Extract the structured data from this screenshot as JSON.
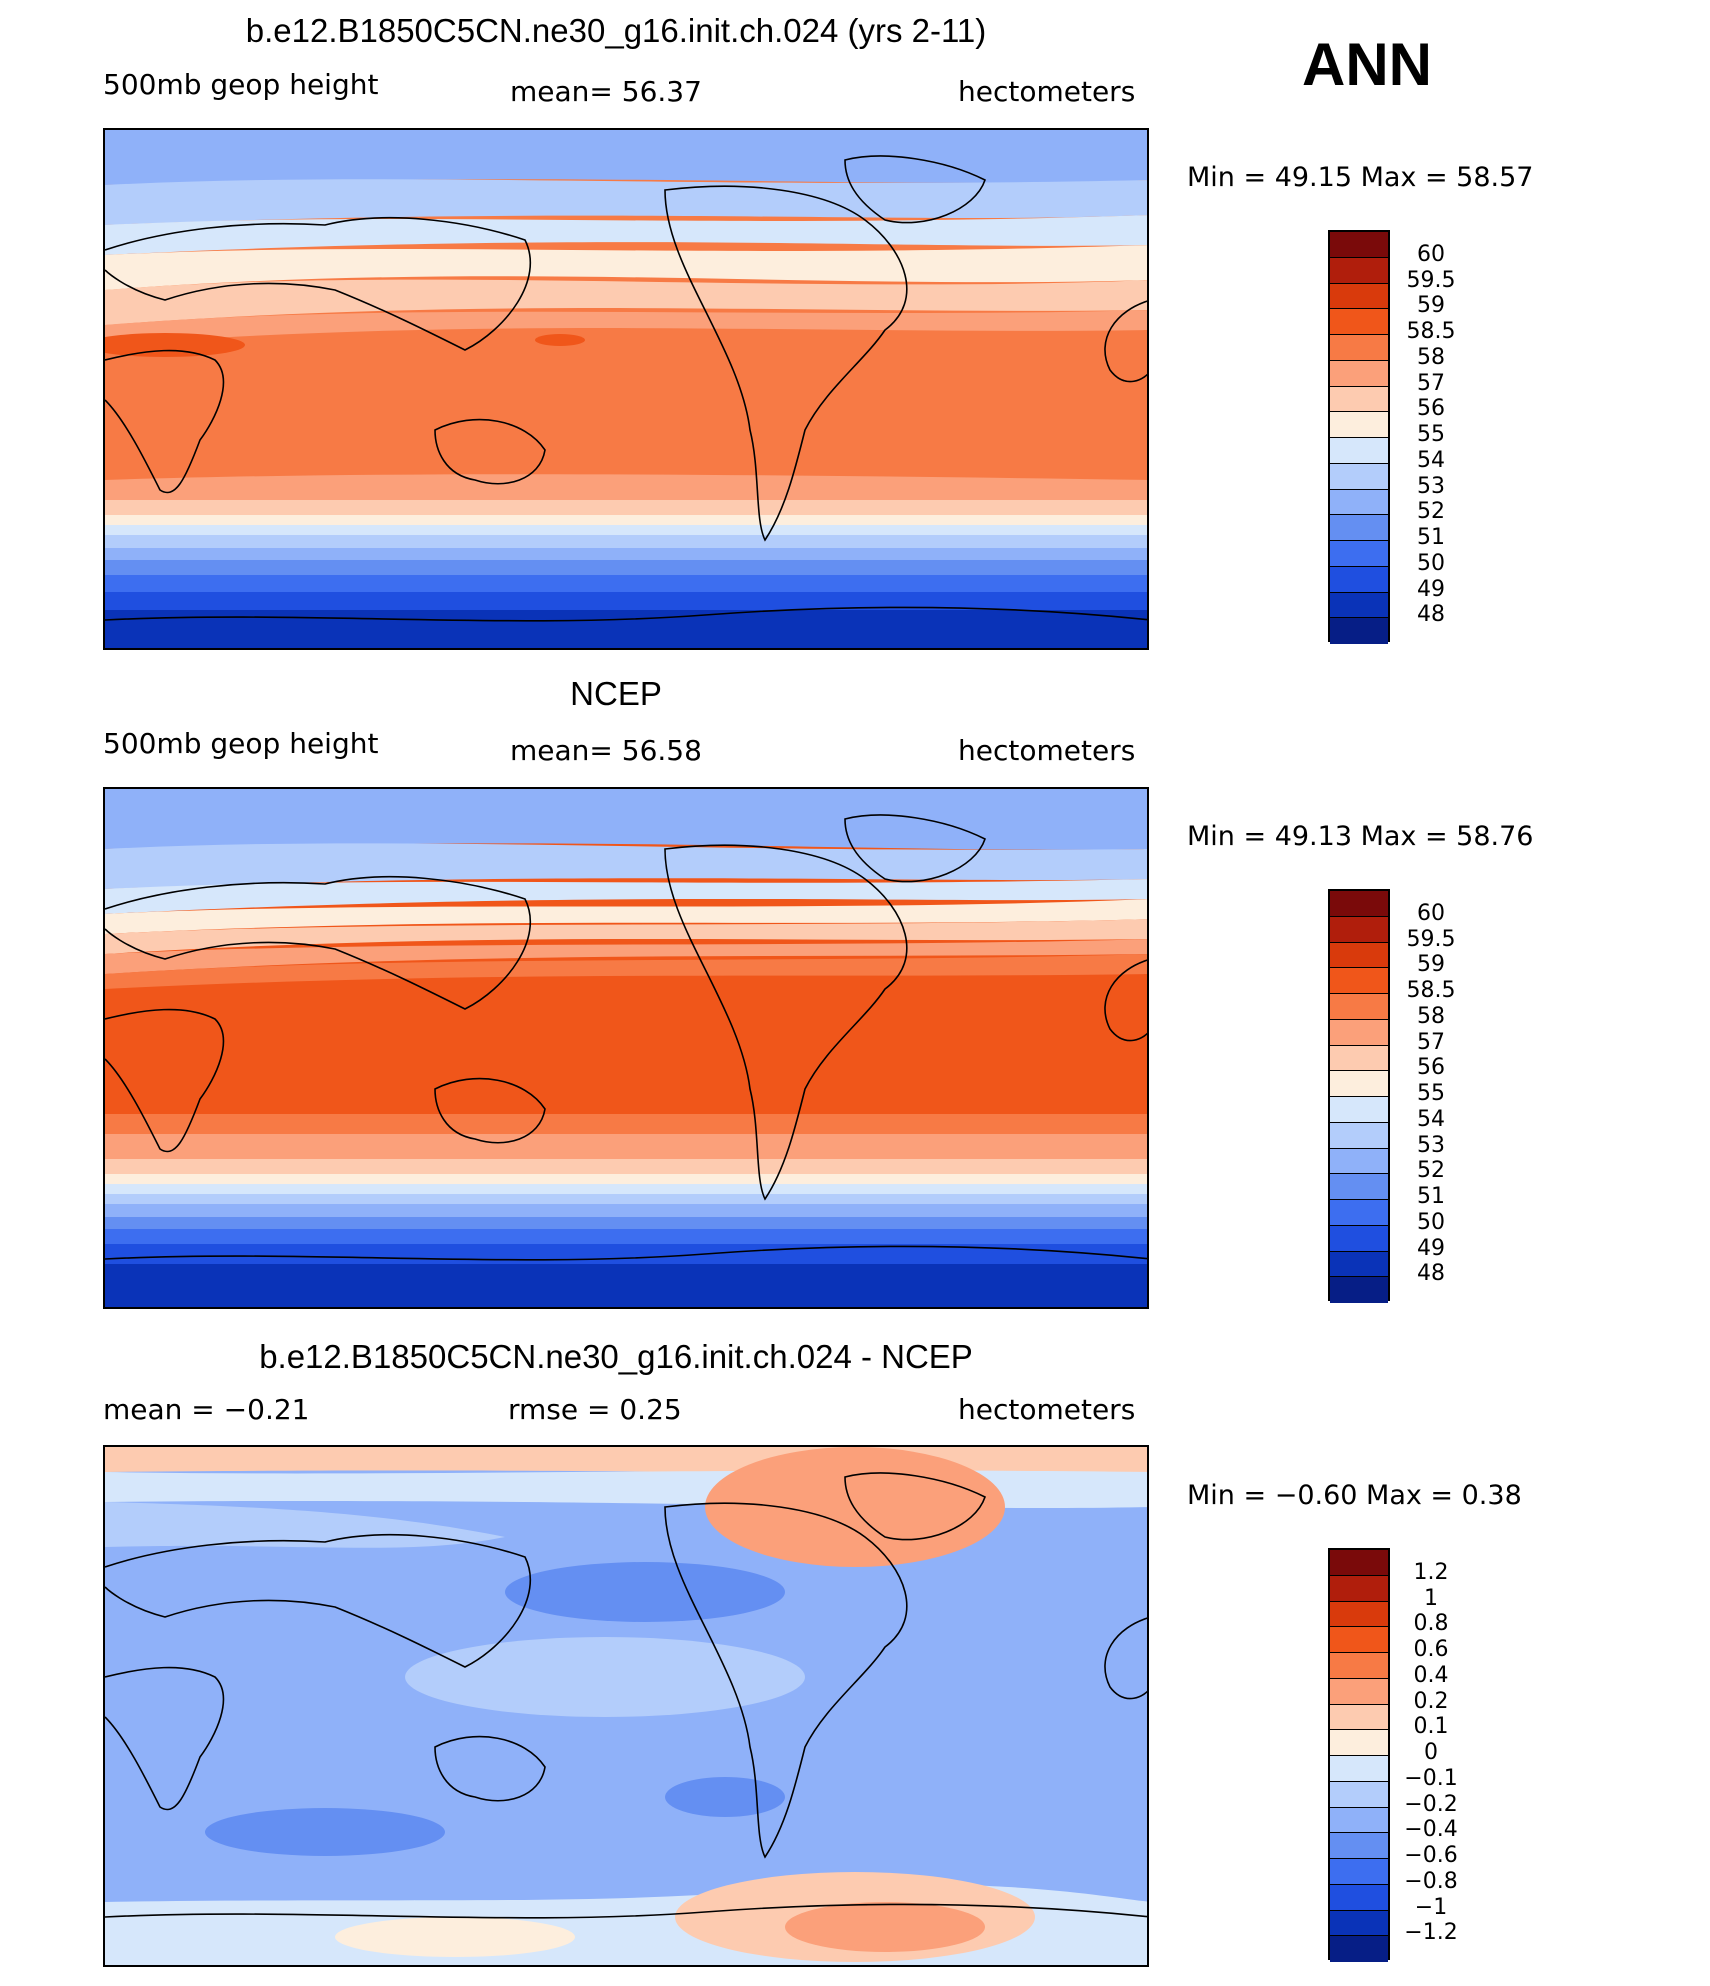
{
  "season": "ANN",
  "panels": [
    {
      "title": "b.e12.B1850C5CN.ne30_g16.init.ch.024 (yrs 2-11)",
      "left_label": "500mb  geop  height",
      "center_label": "mean=   56.37",
      "right_label": "hectometers",
      "minmax": "Min  =    49.15  Max  =    58.57",
      "colorbar_labels": [
        "60",
        "59.5",
        "59",
        "58.5",
        "58",
        "57",
        "56",
        "55",
        "54",
        "53",
        "52",
        "51",
        "50",
        "49",
        "48"
      ]
    },
    {
      "title": "NCEP",
      "left_label": "500mb  geop  height",
      "center_label": "mean=   56.58",
      "right_label": "hectometers",
      "minmax": "Min  =    49.13  Max  =    58.76",
      "colorbar_labels": [
        "60",
        "59.5",
        "59",
        "58.5",
        "58",
        "57",
        "56",
        "55",
        "54",
        "53",
        "52",
        "51",
        "50",
        "49",
        "48"
      ]
    },
    {
      "title": "b.e12.B1850C5CN.ne30_g16.init.ch.024 - NCEP",
      "left_label": "mean  =    −0.21",
      "center_label": "rmse  =     0.25",
      "right_label": "hectometers",
      "minmax": "Min  =   −0.60  Max  =     0.38",
      "colorbar_labels": [
        "1.2",
        "1",
        "0.8",
        "0.6",
        "0.4",
        "0.2",
        "0.1",
        "0",
        "−0.1",
        "−0.2",
        "−0.4",
        "−0.6",
        "−0.8",
        "−1",
        "−1.2"
      ]
    }
  ],
  "colors": {
    "palette": [
      "#7a0a0a",
      "#b01e0c",
      "#d93a0c",
      "#f0561a",
      "#f77a45",
      "#fba07a",
      "#fdcbb0",
      "#fdeedd",
      "#d6e7fb",
      "#b3cdfb",
      "#8fb1f9",
      "#648ff2",
      "#3d6ef0",
      "#1f4fe0",
      "#0a33b8",
      "#061e86"
    ]
  }
}
